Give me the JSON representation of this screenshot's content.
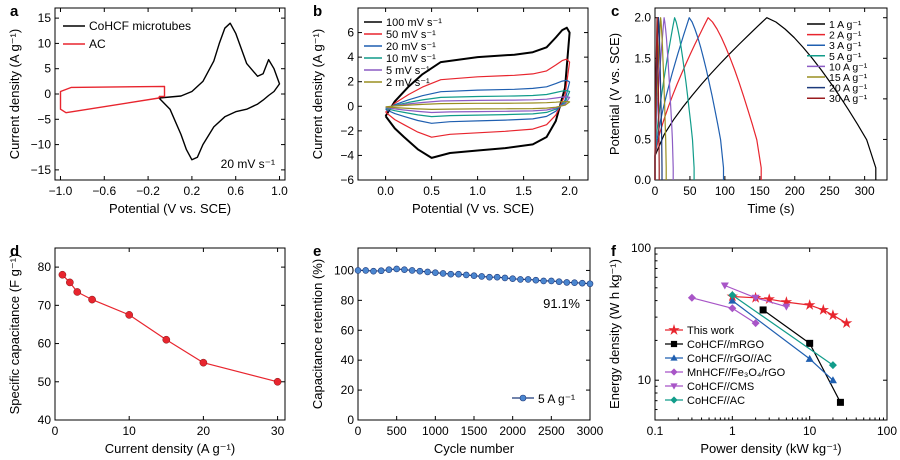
{
  "chart_data": [
    {
      "panel": "a",
      "type": "line",
      "xlabel": "Potential (V vs. SCE)",
      "ylabel": "Current density (A g⁻¹)",
      "xlim": [
        -1.05,
        1.05
      ],
      "ylim": [
        -17,
        17
      ],
      "xticks": [
        -1.0,
        -0.6,
        -0.2,
        0.2,
        0.6,
        1.0
      ],
      "xtick_labels": [
        "−1.0",
        "−0.6",
        "−0.2",
        "0.2",
        "0.6",
        "1.0"
      ],
      "yticks": [
        -15,
        -10,
        -5,
        0,
        5,
        10,
        15
      ],
      "ytick_labels": [
        "−15",
        "−10",
        "−5",
        "0",
        "5",
        "10",
        "15"
      ],
      "legend": [
        "CoHCF microtubes",
        "AC"
      ],
      "annotation": "20 mV s⁻¹",
      "series": [
        {
          "name": "CoHCF microtubes",
          "color": "#000000",
          "x": [
            -0.1,
            0.0,
            0.1,
            0.2,
            0.3,
            0.4,
            0.45,
            0.5,
            0.55,
            0.6,
            0.7,
            0.8,
            0.85,
            0.9,
            0.95,
            1.0,
            0.95,
            0.9,
            0.85,
            0.8,
            0.7,
            0.6,
            0.5,
            0.4,
            0.3,
            0.25,
            0.2,
            0.15,
            0.1,
            0.0,
            -0.1
          ],
          "y": [
            -0.8,
            -0.6,
            -0.4,
            0.5,
            2.5,
            6.5,
            10,
            13,
            14,
            12,
            6,
            3.5,
            4,
            6.8,
            5,
            2,
            0.5,
            -0.3,
            -1.2,
            -2,
            -3,
            -3.5,
            -4.5,
            -6.5,
            -10,
            -12.5,
            -13,
            -11,
            -8,
            -3,
            -0.8
          ]
        },
        {
          "name": "AC",
          "color": "#e8252e",
          "x": [
            -0.1,
            -0.05,
            -0.05,
            -0.9,
            -1.0,
            -1.0,
            -0.95,
            -0.1,
            -0.1
          ],
          "y": [
            -0.5,
            -0.5,
            1.5,
            1.3,
            0.5,
            -3,
            -3.7,
            -0.8,
            -0.5
          ]
        }
      ]
    },
    {
      "panel": "b",
      "type": "line",
      "xlabel": "Potential (V vs. SCE)",
      "ylabel": "Current density (A g⁻¹)",
      "xlim": [
        -0.3,
        2.2
      ],
      "ylim": [
        -6,
        8
      ],
      "xticks": [
        0.0,
        0.5,
        1.0,
        1.5,
        2.0
      ],
      "xtick_labels": [
        "0.0",
        "0.5",
        "1.0",
        "1.5",
        "2.0"
      ],
      "yticks": [
        -6,
        -4,
        -2,
        0,
        2,
        4,
        6
      ],
      "ytick_labels": [
        "−6",
        "−4",
        "−2",
        "0",
        "2",
        "4",
        "6"
      ],
      "series": [
        {
          "name": "100 mV s⁻¹",
          "color": "#000000",
          "scale": 1.0
        },
        {
          "name": "50 mV s⁻¹",
          "color": "#e8252e",
          "scale": 0.6
        },
        {
          "name": "20 mV s⁻¹",
          "color": "#1f5fb0",
          "scale": 0.33
        },
        {
          "name": "10 mV s⁻¹",
          "color": "#119c8a",
          "scale": 0.2
        },
        {
          "name": "5 mV s⁻¹",
          "color": "#8c5cc4",
          "scale": 0.12
        },
        {
          "name": "2 mV s⁻¹",
          "color": "#9a8f20",
          "scale": 0.06
        }
      ],
      "reference_curve": {
        "upper_x": [
          0.0,
          0.1,
          0.25,
          0.4,
          0.6,
          1.0,
          1.4,
          1.6,
          1.75,
          1.85,
          1.92,
          1.97,
          2.0
        ],
        "upper_y": [
          -0.8,
          0.4,
          1.6,
          2.6,
          3.6,
          4.0,
          4.2,
          4.4,
          4.8,
          5.6,
          6.2,
          6.4,
          6.0
        ],
        "lower_x": [
          2.0,
          1.95,
          1.85,
          1.75,
          1.6,
          1.3,
          1.0,
          0.7,
          0.5,
          0.35,
          0.2,
          0.1,
          0.0
        ],
        "lower_y": [
          6.0,
          1.5,
          -1.2,
          -2.5,
          -3.1,
          -3.4,
          -3.6,
          -3.8,
          -4.2,
          -3.5,
          -2.5,
          -1.8,
          -0.8
        ]
      }
    },
    {
      "panel": "c",
      "type": "line",
      "xlabel": "Time (s)",
      "ylabel": "Potential (V vs. SCE)",
      "xlim": [
        0,
        332
      ],
      "ylim": [
        0,
        2.12
      ],
      "xticks": [
        0,
        50,
        100,
        150,
        200,
        250,
        300
      ],
      "yticks": [
        0.0,
        0.5,
        1.0,
        1.5,
        2.0
      ],
      "ytick_labels": [
        "0.0",
        "0.5",
        "1.0",
        "1.5",
        "2.0"
      ],
      "series": [
        {
          "name": "1 A g⁻¹",
          "color": "#000000",
          "period": 316,
          "peak_t": 160
        },
        {
          "name": "2 A g⁻¹",
          "color": "#e8252e",
          "period": 152,
          "peak_t": 76
        },
        {
          "name": "3 A g⁻¹",
          "color": "#1f5fb0",
          "period": 98,
          "peak_t": 49
        },
        {
          "name": "5 A g⁻¹",
          "color": "#119c8a",
          "period": 56,
          "peak_t": 28
        },
        {
          "name": "10 A g⁻¹",
          "color": "#8c5cc4",
          "period": 26,
          "peak_t": 13
        },
        {
          "name": "15 A g⁻¹",
          "color": "#9a8f20",
          "period": 16,
          "peak_t": 8
        },
        {
          "name": "20 A g⁻¹",
          "color": "#1c3a7c",
          "period": 10,
          "peak_t": 5
        },
        {
          "name": "30 A g⁻¹",
          "color": "#9a1b1e",
          "period": 6,
          "peak_t": 3
        }
      ],
      "v_max": 2.0
    },
    {
      "panel": "d",
      "type": "scatter",
      "xlabel": "Current density (A g⁻¹)",
      "ylabel": "Specific capacitance (F g⁻¹)",
      "xlim": [
        0,
        31
      ],
      "ylim": [
        40,
        85
      ],
      "xticks": [
        0,
        10,
        20,
        30
      ],
      "yticks": [
        40,
        50,
        60,
        70,
        80
      ],
      "series": [
        {
          "name": "CoHCF//AC",
          "color": "#e8252e",
          "x": [
            1,
            2,
            3,
            5,
            10,
            15,
            20,
            30
          ],
          "y": [
            78,
            76,
            73.5,
            71.5,
            67.5,
            61,
            55,
            50
          ]
        }
      ]
    },
    {
      "panel": "e",
      "type": "scatter",
      "xlabel": "Cycle number",
      "ylabel": "Capacitance retention (%)",
      "xlim": [
        0,
        3000
      ],
      "ylim": [
        0,
        115
      ],
      "xticks": [
        0,
        500,
        1000,
        1500,
        2000,
        2500,
        3000
      ],
      "yticks": [
        0,
        20,
        40,
        60,
        80,
        100
      ],
      "annotation": "91.1%",
      "legend": [
        "5 A g⁻¹"
      ],
      "series": [
        {
          "name": "5 A g⁻¹",
          "color": "#1f5fb0",
          "x": [
            0,
            100,
            200,
            300,
            400,
            500,
            600,
            700,
            800,
            900,
            1000,
            1100,
            1200,
            1300,
            1400,
            1500,
            1600,
            1700,
            1800,
            1900,
            2000,
            2100,
            2200,
            2300,
            2400,
            2500,
            2600,
            2700,
            2800,
            2900,
            3000
          ],
          "y": [
            100,
            100,
            99.5,
            99.8,
            100.5,
            101,
            100.5,
            100,
            99.5,
            99,
            98.5,
            98,
            97.5,
            97.5,
            97,
            96.5,
            96,
            95.5,
            95.5,
            95,
            94.5,
            94,
            94,
            93.5,
            93,
            93,
            92.5,
            92,
            91.8,
            91.5,
            91.1
          ]
        }
      ]
    },
    {
      "panel": "f",
      "type": "scatter",
      "xscale": "log",
      "yscale": "log",
      "xlabel": "Power density (kW kg⁻¹)",
      "ylabel": "Energy density (W h kg⁻¹)",
      "xlim": [
        0.1,
        100
      ],
      "ylim": [
        5,
        100
      ],
      "xticks": [
        0.1,
        1,
        10,
        100
      ],
      "yticks": [
        10,
        100
      ],
      "series": [
        {
          "name": "This work",
          "color": "#e8252e",
          "marker": "star",
          "x": [
            1,
            2,
            3,
            5,
            10,
            15,
            20,
            30
          ],
          "y": [
            43,
            42,
            41,
            39,
            37,
            34,
            31,
            27
          ]
        },
        {
          "name": "CoHCF//mRGO",
          "color": "#000000",
          "marker": "square",
          "x": [
            2.5,
            10,
            25
          ],
          "y": [
            34,
            19,
            6.8
          ]
        },
        {
          "name": "CoHCF//rGO//AC",
          "color": "#1f5fb0",
          "marker": "triangle",
          "x": [
            1,
            10,
            20
          ],
          "y": [
            40,
            14.5,
            10
          ]
        },
        {
          "name": "MnHCF//Fe₃O₄/rGO",
          "color": "#a855c7",
          "marker": "diamond",
          "x": [
            0.3,
            1,
            2
          ],
          "y": [
            42,
            35,
            27
          ]
        },
        {
          "name": "CoHCF//CMS",
          "color": "#a855c7",
          "marker": "triangle-down",
          "x": [
            0.8,
            2,
            5
          ],
          "y": [
            52,
            42,
            36
          ]
        },
        {
          "name": "CoHCF//AC",
          "color": "#119c8a",
          "marker": "diamond",
          "x": [
            1,
            20
          ],
          "y": [
            44,
            13
          ]
        }
      ]
    }
  ]
}
